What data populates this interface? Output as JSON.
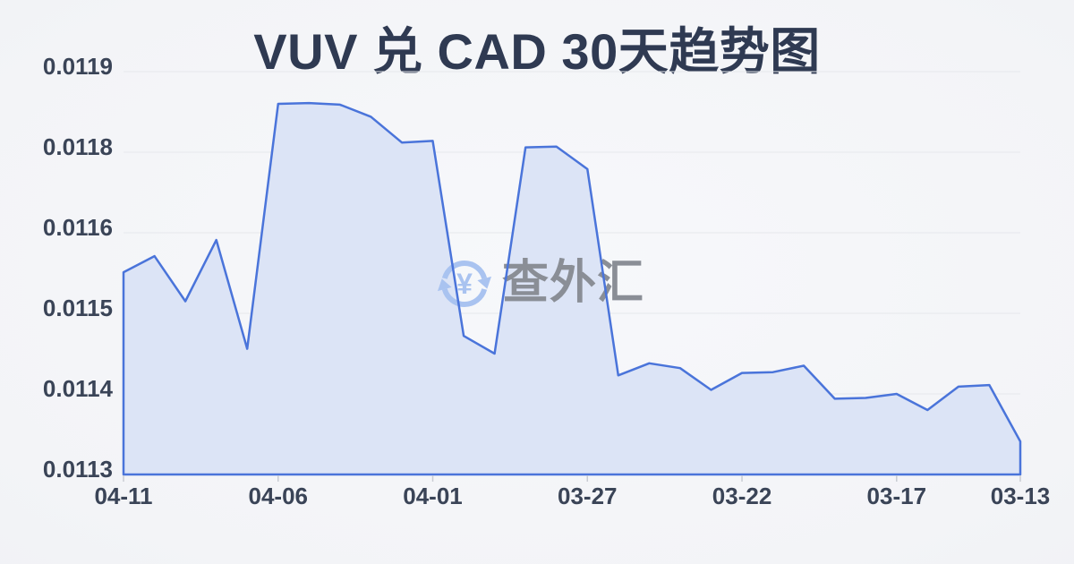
{
  "page": {
    "title": "VUV 兑 CAD 30天趋势图",
    "background": "#f3f4f7"
  },
  "watermark": {
    "text": "查外汇",
    "symbol": "¥",
    "icon": "currency-exchange-icon",
    "icon_color": "#a9c3f0",
    "text_color": "#8a8e96"
  },
  "chart_data": {
    "type": "area",
    "title": "VUV 兑 CAD 30天趋势图",
    "xlabel": "",
    "ylabel": "",
    "x_order": "newest-to-oldest",
    "x": [
      "04-11",
      "04-10",
      "04-09",
      "04-08",
      "04-07",
      "04-06",
      "04-05",
      "04-04",
      "04-03",
      "04-02",
      "04-01",
      "03-31",
      "03-30",
      "03-29",
      "03-28",
      "03-27",
      "03-26",
      "03-25",
      "03-24",
      "03-23",
      "03-22",
      "03-21",
      "03-20",
      "03-19",
      "03-18",
      "03-17",
      "03-16",
      "03-15",
      "03-14",
      "03-13"
    ],
    "values": [
      0.011551,
      0.011571,
      0.011515,
      0.011591,
      0.011456,
      0.01186,
      0.011861,
      0.011859,
      0.011844,
      0.011812,
      0.011814,
      0.011472,
      0.01145,
      0.011806,
      0.011807,
      0.011758,
      0.011423,
      0.011438,
      0.011432,
      0.011405,
      0.011426,
      0.011427,
      0.011435,
      0.011394,
      0.011395,
      0.0114,
      0.01138,
      0.011409,
      0.011411,
      0.011341
    ],
    "series_name": "VUV/CAD",
    "x_ticks": [
      {
        "label": "04-11",
        "index": 0
      },
      {
        "label": "04-06",
        "index": 5
      },
      {
        "label": "04-01",
        "index": 10
      },
      {
        "label": "03-27",
        "index": 15
      },
      {
        "label": "03-22",
        "index": 20
      },
      {
        "label": "03-17",
        "index": 25
      },
      {
        "label": "03-13",
        "index": 29
      }
    ],
    "y_tick_labels": [
      "0.0113",
      "0.0114",
      "0.0115",
      "0.0116",
      "0.0118",
      "0.0119"
    ],
    "y_tick_values": [
      0.0113,
      0.0114,
      0.0115,
      0.0116,
      0.0118,
      0.0119
    ],
    "ylim": [
      0.0113,
      0.0119
    ],
    "grid": true,
    "legend": false,
    "line_color": "#4a74da",
    "fill_color": "#dce4f6",
    "grid_color": "#e6e8ec",
    "axis_label_color": "#3a4457",
    "axis_tick_color": "#c9ccd3"
  }
}
